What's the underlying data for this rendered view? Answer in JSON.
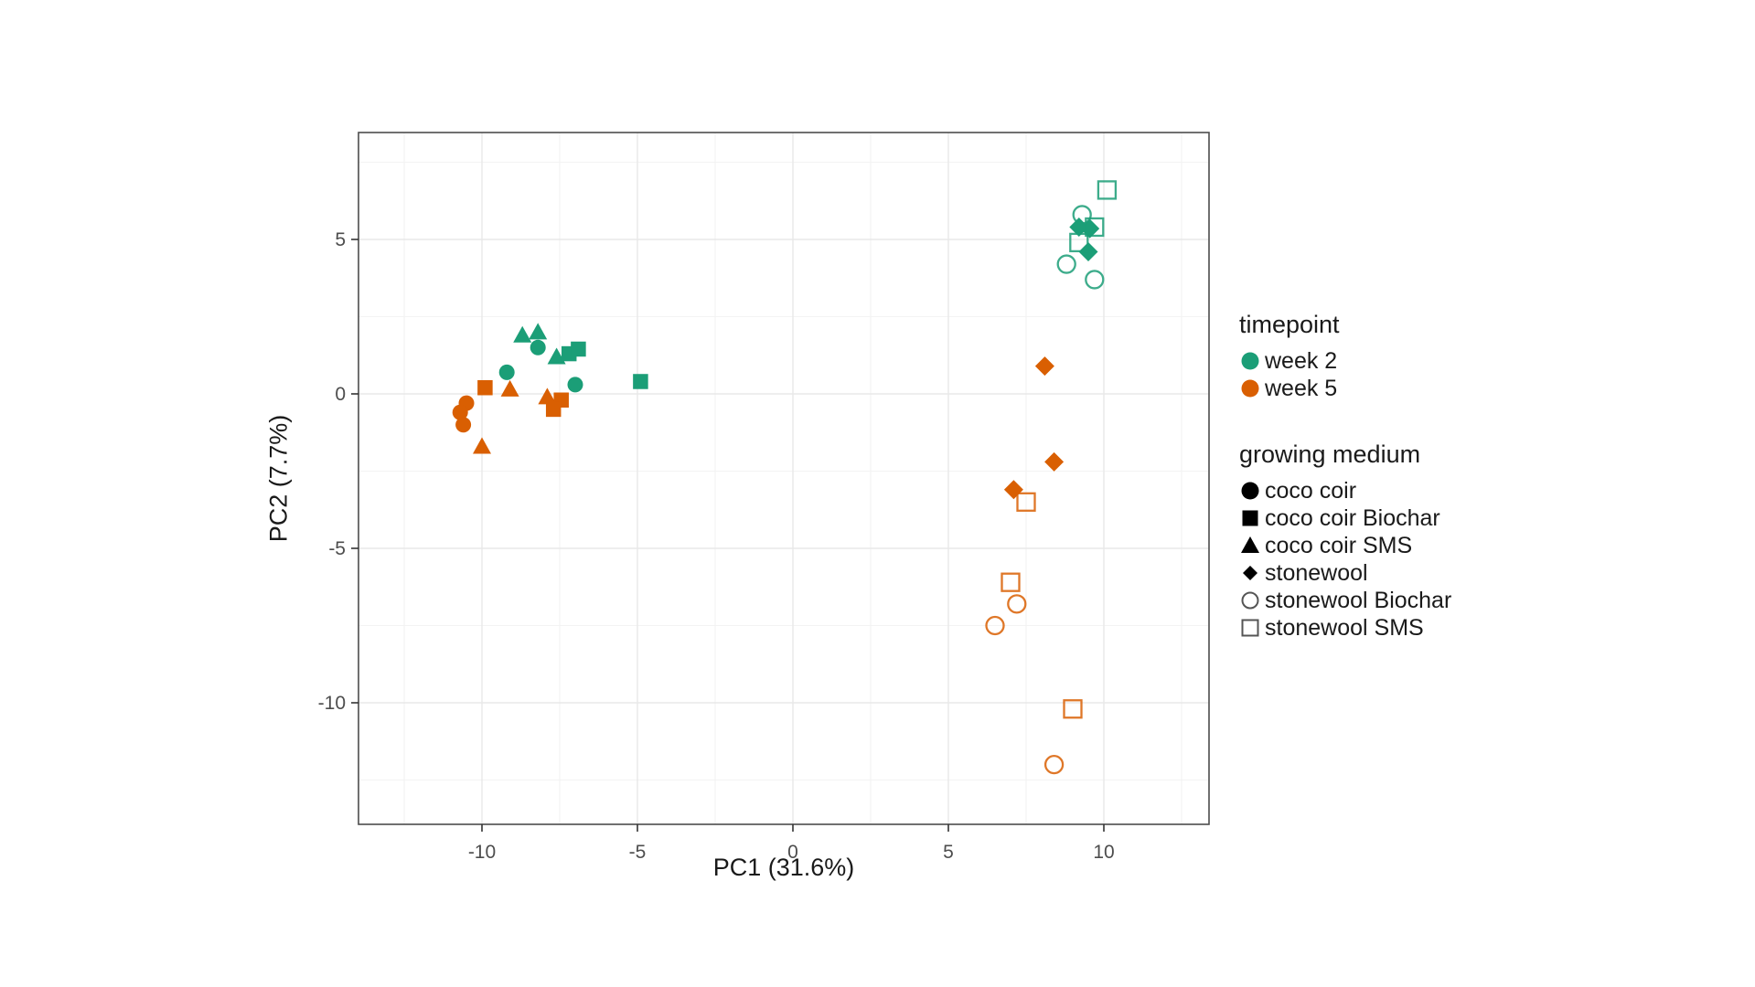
{
  "figure": {
    "background": "#ffffff"
  },
  "chart_data": {
    "type": "scatter",
    "title": "",
    "xlabel": "PC1 (31.6%)",
    "ylabel": "PC2 (7.7%)",
    "xlim": [
      -14,
      13.4
    ],
    "ylim": [
      -13.9,
      8.5
    ],
    "x_ticks": [
      -10,
      -5,
      0,
      5,
      10
    ],
    "y_ticks": [
      5,
      0,
      -5,
      -10
    ],
    "x_minor_ticks": [
      -12.5,
      -7.5,
      -2.5,
      2.5,
      7.5,
      12.5
    ],
    "y_minor_ticks": [
      7.5,
      2.5,
      -2.5,
      -7.5,
      -12.5
    ],
    "grid": "major and minor gridlines, light gray on white panel, dark panel border (ggplot theme_bw)",
    "legend_position": "right",
    "colors": {
      "week 2": "#1B9E77",
      "week 5": "#D95F02"
    },
    "shapes": {
      "coco coir": "filled-circle",
      "coco coir Biochar": "filled-square",
      "coco coir SMS": "filled-triangle",
      "stonewool": "filled-diamond",
      "stonewool Biochar": "open-circle",
      "stonewool SMS": "open-square"
    },
    "series": [
      {
        "timepoint": "week 2",
        "medium": "coco coir",
        "points": [
          [
            -9.2,
            0.7
          ],
          [
            -8.2,
            1.5
          ],
          [
            -7.0,
            0.3
          ]
        ]
      },
      {
        "timepoint": "week 2",
        "medium": "coco coir Biochar",
        "points": [
          [
            -7.2,
            1.3
          ],
          [
            -6.9,
            1.45
          ],
          [
            -4.9,
            0.4
          ]
        ]
      },
      {
        "timepoint": "week 2",
        "medium": "coco coir SMS",
        "points": [
          [
            -8.7,
            1.9
          ],
          [
            -8.2,
            2.0
          ],
          [
            -7.6,
            1.2
          ]
        ]
      },
      {
        "timepoint": "week 2",
        "medium": "stonewool",
        "points": [
          [
            9.2,
            5.4
          ],
          [
            9.55,
            5.35
          ],
          [
            9.5,
            4.6
          ]
        ]
      },
      {
        "timepoint": "week 2",
        "medium": "stonewool Biochar",
        "points": [
          [
            9.3,
            5.8
          ],
          [
            8.8,
            4.2
          ],
          [
            9.7,
            3.7
          ]
        ]
      },
      {
        "timepoint": "week 2",
        "medium": "stonewool SMS",
        "points": [
          [
            10.1,
            6.6
          ],
          [
            9.7,
            5.4
          ],
          [
            9.2,
            4.9
          ]
        ]
      },
      {
        "timepoint": "week 5",
        "medium": "coco coir",
        "points": [
          [
            -10.5,
            -0.3
          ],
          [
            -10.7,
            -0.6
          ],
          [
            -10.6,
            -1.0
          ]
        ]
      },
      {
        "timepoint": "week 5",
        "medium": "coco coir Biochar",
        "points": [
          [
            -9.9,
            0.2
          ],
          [
            -7.45,
            -0.2
          ],
          [
            -7.7,
            -0.5
          ]
        ]
      },
      {
        "timepoint": "week 5",
        "medium": "coco coir SMS",
        "points": [
          [
            -9.1,
            0.15
          ],
          [
            -10.0,
            -1.7
          ],
          [
            -7.9,
            -0.1
          ]
        ]
      },
      {
        "timepoint": "week 5",
        "medium": "stonewool",
        "points": [
          [
            8.1,
            0.9
          ],
          [
            8.4,
            -2.2
          ],
          [
            7.1,
            -3.1
          ]
        ]
      },
      {
        "timepoint": "week 5",
        "medium": "stonewool Biochar",
        "points": [
          [
            7.2,
            -6.8
          ],
          [
            6.5,
            -7.5
          ],
          [
            8.4,
            -12.0
          ]
        ]
      },
      {
        "timepoint": "week 5",
        "medium": "stonewool SMS",
        "points": [
          [
            7.5,
            -3.5
          ],
          [
            7.0,
            -6.1
          ],
          [
            9.0,
            -10.2
          ]
        ]
      }
    ]
  },
  "legend": {
    "groups": [
      {
        "title": "timepoint",
        "items": [
          {
            "label": "week 2",
            "glyph": "filled-circle",
            "color": "#1B9E77"
          },
          {
            "label": "week 5",
            "glyph": "filled-circle",
            "color": "#D95F02"
          }
        ]
      },
      {
        "title": "growing medium",
        "items": [
          {
            "label": "coco coir",
            "glyph": "filled-circle",
            "color": "#000000"
          },
          {
            "label": "coco coir Biochar",
            "glyph": "filled-square",
            "color": "#000000"
          },
          {
            "label": "coco coir SMS",
            "glyph": "filled-triangle",
            "color": "#000000"
          },
          {
            "label": "stonewool",
            "glyph": "filled-diamond",
            "color": "#000000"
          },
          {
            "label": "stonewool Biochar",
            "glyph": "open-circle",
            "color": "#555555"
          },
          {
            "label": "stonewool SMS",
            "glyph": "open-square",
            "color": "#555555"
          }
        ]
      }
    ]
  },
  "style": {
    "panel_border": "#4d4d4d",
    "major_grid": "#e8e8e8",
    "minor_grid": "#f3f3f3",
    "tick_color": "#333333",
    "tick_label_color": "#4d4d4d"
  }
}
